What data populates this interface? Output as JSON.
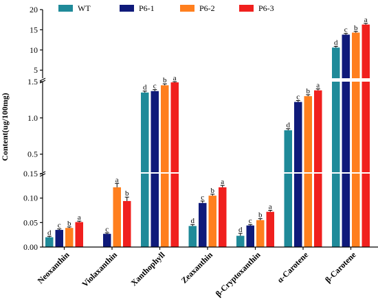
{
  "chart_data": {
    "type": "bar",
    "title": "",
    "xlabel": "",
    "ylabel": "Content(ug/100mg)",
    "categories": [
      "Neoxanthin",
      "Violaxanthin",
      "Xanthophyll",
      "Zeaxanthin",
      "β-Cryptoxanthin",
      "α-Carotene",
      "β-Carotene"
    ],
    "series": [
      {
        "name": "WT",
        "color": "#1f8a99",
        "values": [
          0.02,
          null,
          1.35,
          0.043,
          0.023,
          0.83,
          10.6
        ],
        "errors": [
          0.002,
          null,
          0.02,
          0.003,
          0.005,
          0.02,
          0.3
        ],
        "letters": [
          "d",
          "",
          "d",
          "d",
          "d",
          "d",
          "d"
        ]
      },
      {
        "name": "P6-1",
        "color": "#0f1a7a",
        "values": [
          0.035,
          0.027,
          1.37,
          0.09,
          0.044,
          1.22,
          13.8
        ],
        "errors": [
          0.002,
          0.002,
          0.02,
          0.004,
          0.002,
          0.02,
          0.3
        ],
        "letters": [
          "c",
          "c",
          "c",
          "c",
          "c",
          "c",
          "c"
        ]
      },
      {
        "name": "P6-2",
        "color": "#ff7f1e",
        "values": [
          0.039,
          0.122,
          1.45,
          0.105,
          0.055,
          1.3,
          14.3
        ],
        "errors": [
          0.002,
          0.008,
          0.02,
          0.003,
          0.003,
          0.02,
          0.3
        ],
        "letters": [
          "b",
          "a",
          "b",
          "b",
          "b",
          "b",
          "b"
        ]
      },
      {
        "name": "P6-3",
        "color": "#f0201e",
        "values": [
          0.051,
          0.094,
          1.49,
          0.122,
          0.072,
          1.38,
          16.3
        ],
        "errors": [
          0.002,
          0.008,
          0.02,
          0.004,
          0.003,
          0.02,
          0.3
        ],
        "letters": [
          "a",
          "b",
          "a",
          "a",
          "a",
          "a",
          "a"
        ]
      }
    ],
    "y_segments": [
      {
        "range": [
          0,
          0.15
        ],
        "ticks": [
          "0.00",
          "0.05",
          "0.10",
          "0.15"
        ]
      },
      {
        "range": [
          0.25,
          1.5
        ],
        "ticks": [
          "0.5",
          "1.0",
          "1.5"
        ]
      },
      {
        "range": [
          3,
          20
        ],
        "ticks": [
          "5",
          "10",
          "15",
          "20"
        ]
      }
    ],
    "legend_position": "top",
    "grid": false
  }
}
